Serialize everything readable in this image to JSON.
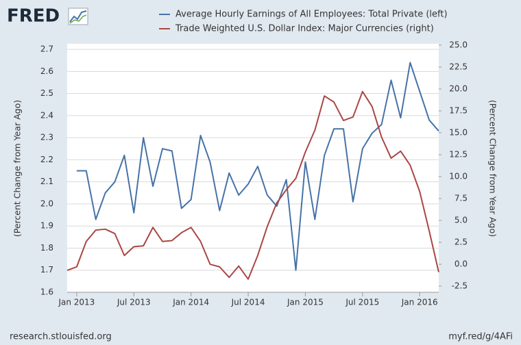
{
  "chart_data": {
    "type": "line",
    "logo": "FRED",
    "x": [
      "2012-12",
      "2013-01",
      "2013-02",
      "2013-03",
      "2013-04",
      "2013-05",
      "2013-06",
      "2013-07",
      "2013-08",
      "2013-09",
      "2013-10",
      "2013-11",
      "2013-12",
      "2014-01",
      "2014-02",
      "2014-03",
      "2014-04",
      "2014-05",
      "2014-06",
      "2014-07",
      "2014-08",
      "2014-09",
      "2014-10",
      "2014-11",
      "2014-12",
      "2015-01",
      "2015-02",
      "2015-03",
      "2015-04",
      "2015-05",
      "2015-06",
      "2015-07",
      "2015-08",
      "2015-09",
      "2015-10",
      "2015-11",
      "2015-12",
      "2016-01",
      "2016-02",
      "2016-03"
    ],
    "xlim": [
      "2012-12",
      "2016-03"
    ],
    "xticks": [
      {
        "value": "2013-01",
        "label": "Jan 2013"
      },
      {
        "value": "2013-07",
        "label": "Jul 2013"
      },
      {
        "value": "2014-01",
        "label": "Jan 2014"
      },
      {
        "value": "2014-07",
        "label": "Jul 2014"
      },
      {
        "value": "2015-01",
        "label": "Jan 2015"
      },
      {
        "value": "2015-07",
        "label": "Jul 2015"
      },
      {
        "value": "2016-01",
        "label": "Jan 2016"
      }
    ],
    "ylabel": "(Percent Change from Year Ago)",
    "y2label": "(Percent Change from Year Ago)",
    "ylim": [
      1.6,
      2.725
    ],
    "yticks": [
      1.6,
      1.7,
      1.8,
      1.9,
      {
        "value": 2.0,
        "label": "2.0"
      },
      2.1,
      2.2,
      2.3,
      2.4,
      2.5,
      2.6,
      2.7
    ],
    "y2lim": [
      -3.2,
      25.15
    ],
    "y2ticks": [
      -2.5,
      {
        "value": 0,
        "label": "0.0"
      },
      2.5,
      {
        "value": 5,
        "label": "5.0"
      },
      7.5,
      {
        "value": 10,
        "label": "10.0"
      },
      12.5,
      {
        "value": 15,
        "label": "15.0"
      },
      17.5,
      {
        "value": 20,
        "label": "20.0"
      },
      22.5,
      {
        "value": 25,
        "label": "25.0"
      }
    ],
    "grid": true,
    "series": [
      {
        "name": "Average Hourly Earnings of All Employees: Total Private (left)",
        "color": "#4572a7",
        "axis": "y",
        "values": [
          null,
          2.15,
          2.15,
          1.93,
          2.05,
          2.1,
          2.22,
          1.96,
          2.3,
          2.08,
          2.25,
          2.24,
          1.98,
          2.02,
          2.31,
          2.19,
          1.97,
          2.14,
          2.04,
          2.09,
          2.17,
          2.04,
          1.99,
          2.11,
          1.7,
          2.19,
          1.93,
          2.22,
          2.34,
          2.34,
          2.01,
          2.25,
          2.32,
          2.36,
          2.56,
          2.39,
          2.64,
          2.51,
          2.38,
          2.33
        ]
      },
      {
        "name": "Trade Weighted U.S. Dollar Index: Major Currencies (right)",
        "color": "#aa4643",
        "axis": "y2",
        "values": [
          -0.7,
          -0.3,
          2.6,
          3.9,
          4.0,
          3.5,
          1.0,
          2.0,
          2.1,
          4.2,
          2.6,
          2.7,
          3.6,
          4.2,
          2.6,
          0.0,
          -0.3,
          -1.5,
          -0.2,
          -1.7,
          1.0,
          4.3,
          7.0,
          8.5,
          9.8,
          12.8,
          15.3,
          19.2,
          18.5,
          16.4,
          16.8,
          19.7,
          18.0,
          14.5,
          12.1,
          12.9,
          11.3,
          8.3,
          3.8,
          -0.9
        ]
      }
    ],
    "footer_left": "research.stlouisfed.org",
    "footer_right": "myf.red/g/4AFi"
  }
}
